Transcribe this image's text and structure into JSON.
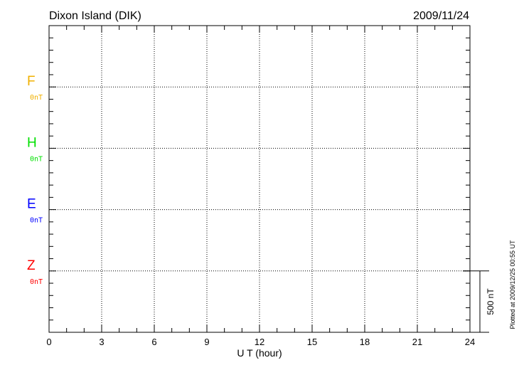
{
  "chart_data": {
    "type": "line",
    "title": "Dixon Island (DIK)",
    "date": "2009/11/24",
    "xlabel": "U T (hour)",
    "xlim": [
      0,
      24
    ],
    "xticks": [
      "0",
      "3",
      "6",
      "9",
      "12",
      "15",
      "18",
      "21",
      "24"
    ],
    "grid": true,
    "scale_label": "500 nT",
    "footer": "Plotted at 2009/12/25 00:55 UT",
    "series": [
      {
        "name": "F",
        "baseline_label": "0nT",
        "color": "#f0b000",
        "values": []
      },
      {
        "name": "H",
        "baseline_label": "0nT",
        "color": "#00e000",
        "values": []
      },
      {
        "name": "E",
        "baseline_label": "0nT",
        "color": "#0000ff",
        "values": []
      },
      {
        "name": "Z",
        "baseline_label": "0nT",
        "color": "#ff0000",
        "values": []
      }
    ]
  }
}
